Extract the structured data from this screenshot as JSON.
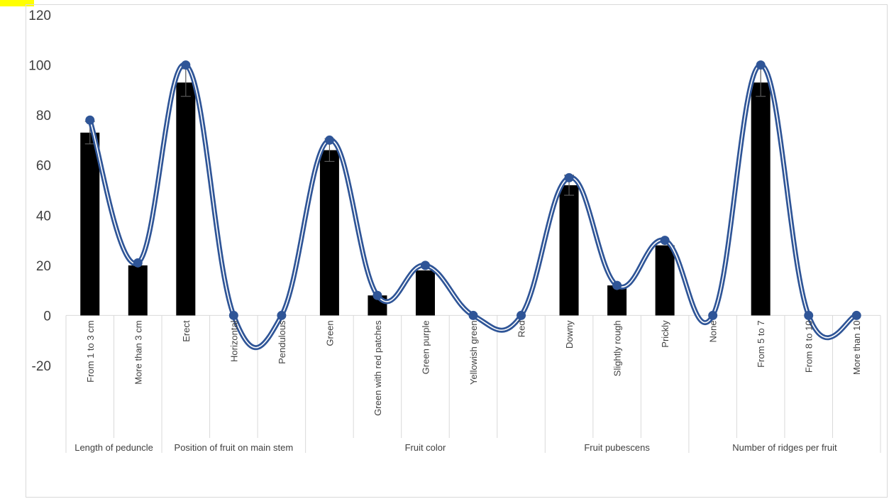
{
  "chart_data": {
    "type": "bar",
    "title": "",
    "xlabel": "",
    "ylabel": "",
    "ylim": [
      -20,
      120
    ],
    "yticks": [
      -20,
      0,
      20,
      40,
      60,
      80,
      100,
      120
    ],
    "grid": false,
    "legend": "none",
    "categories": [
      "From 1 to 3 cm",
      "More than 3 cm",
      "Erect",
      "Horizontal",
      "Pendulous",
      "Green",
      "Green with red patches",
      "Green purple",
      "Yellowish green",
      "Red",
      "Downy",
      "Slightly rough",
      "Prickly",
      "None",
      "From 5 to 7",
      "From 8 to 10",
      "More than 10"
    ],
    "groups": [
      {
        "label": "Length of peduncle",
        "count": 2
      },
      {
        "label": "Position of fruit on main stem",
        "count": 3
      },
      {
        "label": "Fruit color",
        "count": 5
      },
      {
        "label": "Fruit pubescens",
        "count": 3
      },
      {
        "label": "Number of ridges per  fruit",
        "count": 4
      }
    ],
    "series": [
      {
        "kind": "bar",
        "color": "#000000",
        "values": [
          73,
          20,
          93,
          0,
          0,
          66,
          8,
          18,
          0,
          0,
          52,
          12,
          28,
          0,
          93,
          0,
          0
        ],
        "error": [
          4.5,
          0,
          5.5,
          0,
          0,
          4.5,
          0,
          0,
          0,
          0,
          4,
          0,
          0,
          0,
          5.5,
          0,
          0
        ]
      },
      {
        "kind": "smooth-line",
        "color": "#2f5597",
        "values": [
          78,
          21,
          100,
          0,
          0,
          70,
          8,
          20,
          0,
          0,
          55,
          12,
          30,
          0,
          100,
          0,
          0
        ]
      }
    ]
  }
}
